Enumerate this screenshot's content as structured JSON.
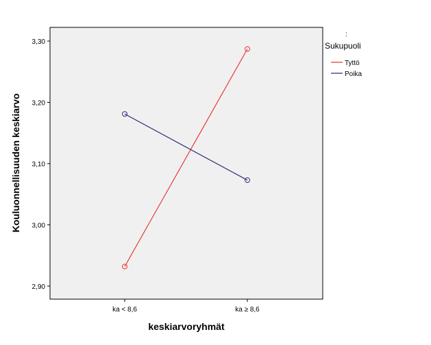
{
  "chart_data": {
    "type": "line",
    "xlabel": "keskiarvoryhmät",
    "ylabel": "Kouluonnellisuuden keskiarvo",
    "categories": [
      "ka < 8,6",
      "ka ≥ 8,6"
    ],
    "ylim": [
      2.88,
      3.32
    ],
    "yticks": [
      2.9,
      3.0,
      3.1,
      3.2,
      3.3
    ],
    "ytick_labels": [
      "2,90",
      "3,00",
      "3,10",
      "3,20",
      "3,30"
    ],
    "grid": false,
    "legend": {
      "placement": "right",
      "marker": ":",
      "title": "Sukupuoli"
    },
    "series": [
      {
        "name": "Tyttö",
        "values": [
          2.932,
          3.287
        ],
        "color": "#e8383b"
      },
      {
        "name": "Poika",
        "values": [
          3.181,
          3.073
        ],
        "color": "#2c2e73"
      }
    ],
    "plot_background": "#f0f0f0"
  }
}
